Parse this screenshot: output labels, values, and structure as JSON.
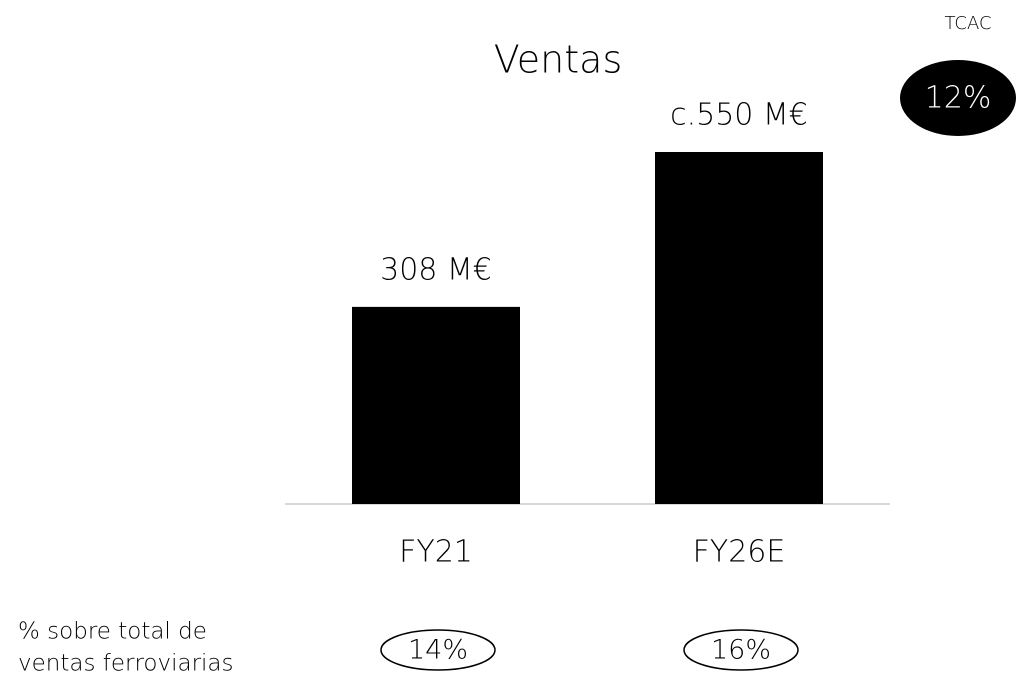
{
  "chart_data": {
    "type": "bar",
    "title": "Ventas",
    "categories": [
      "FY21",
      "FY26E"
    ],
    "values": [
      308,
      550
    ],
    "value_labels": [
      "308 M€",
      "c.550 M€"
    ],
    "color": "#000000",
    "cagr": {
      "label": "TCAC",
      "value": "12%"
    },
    "share_label": [
      "% sobre total de",
      "ventas ferroviarias"
    ],
    "share": [
      "14%",
      "16%"
    ]
  }
}
